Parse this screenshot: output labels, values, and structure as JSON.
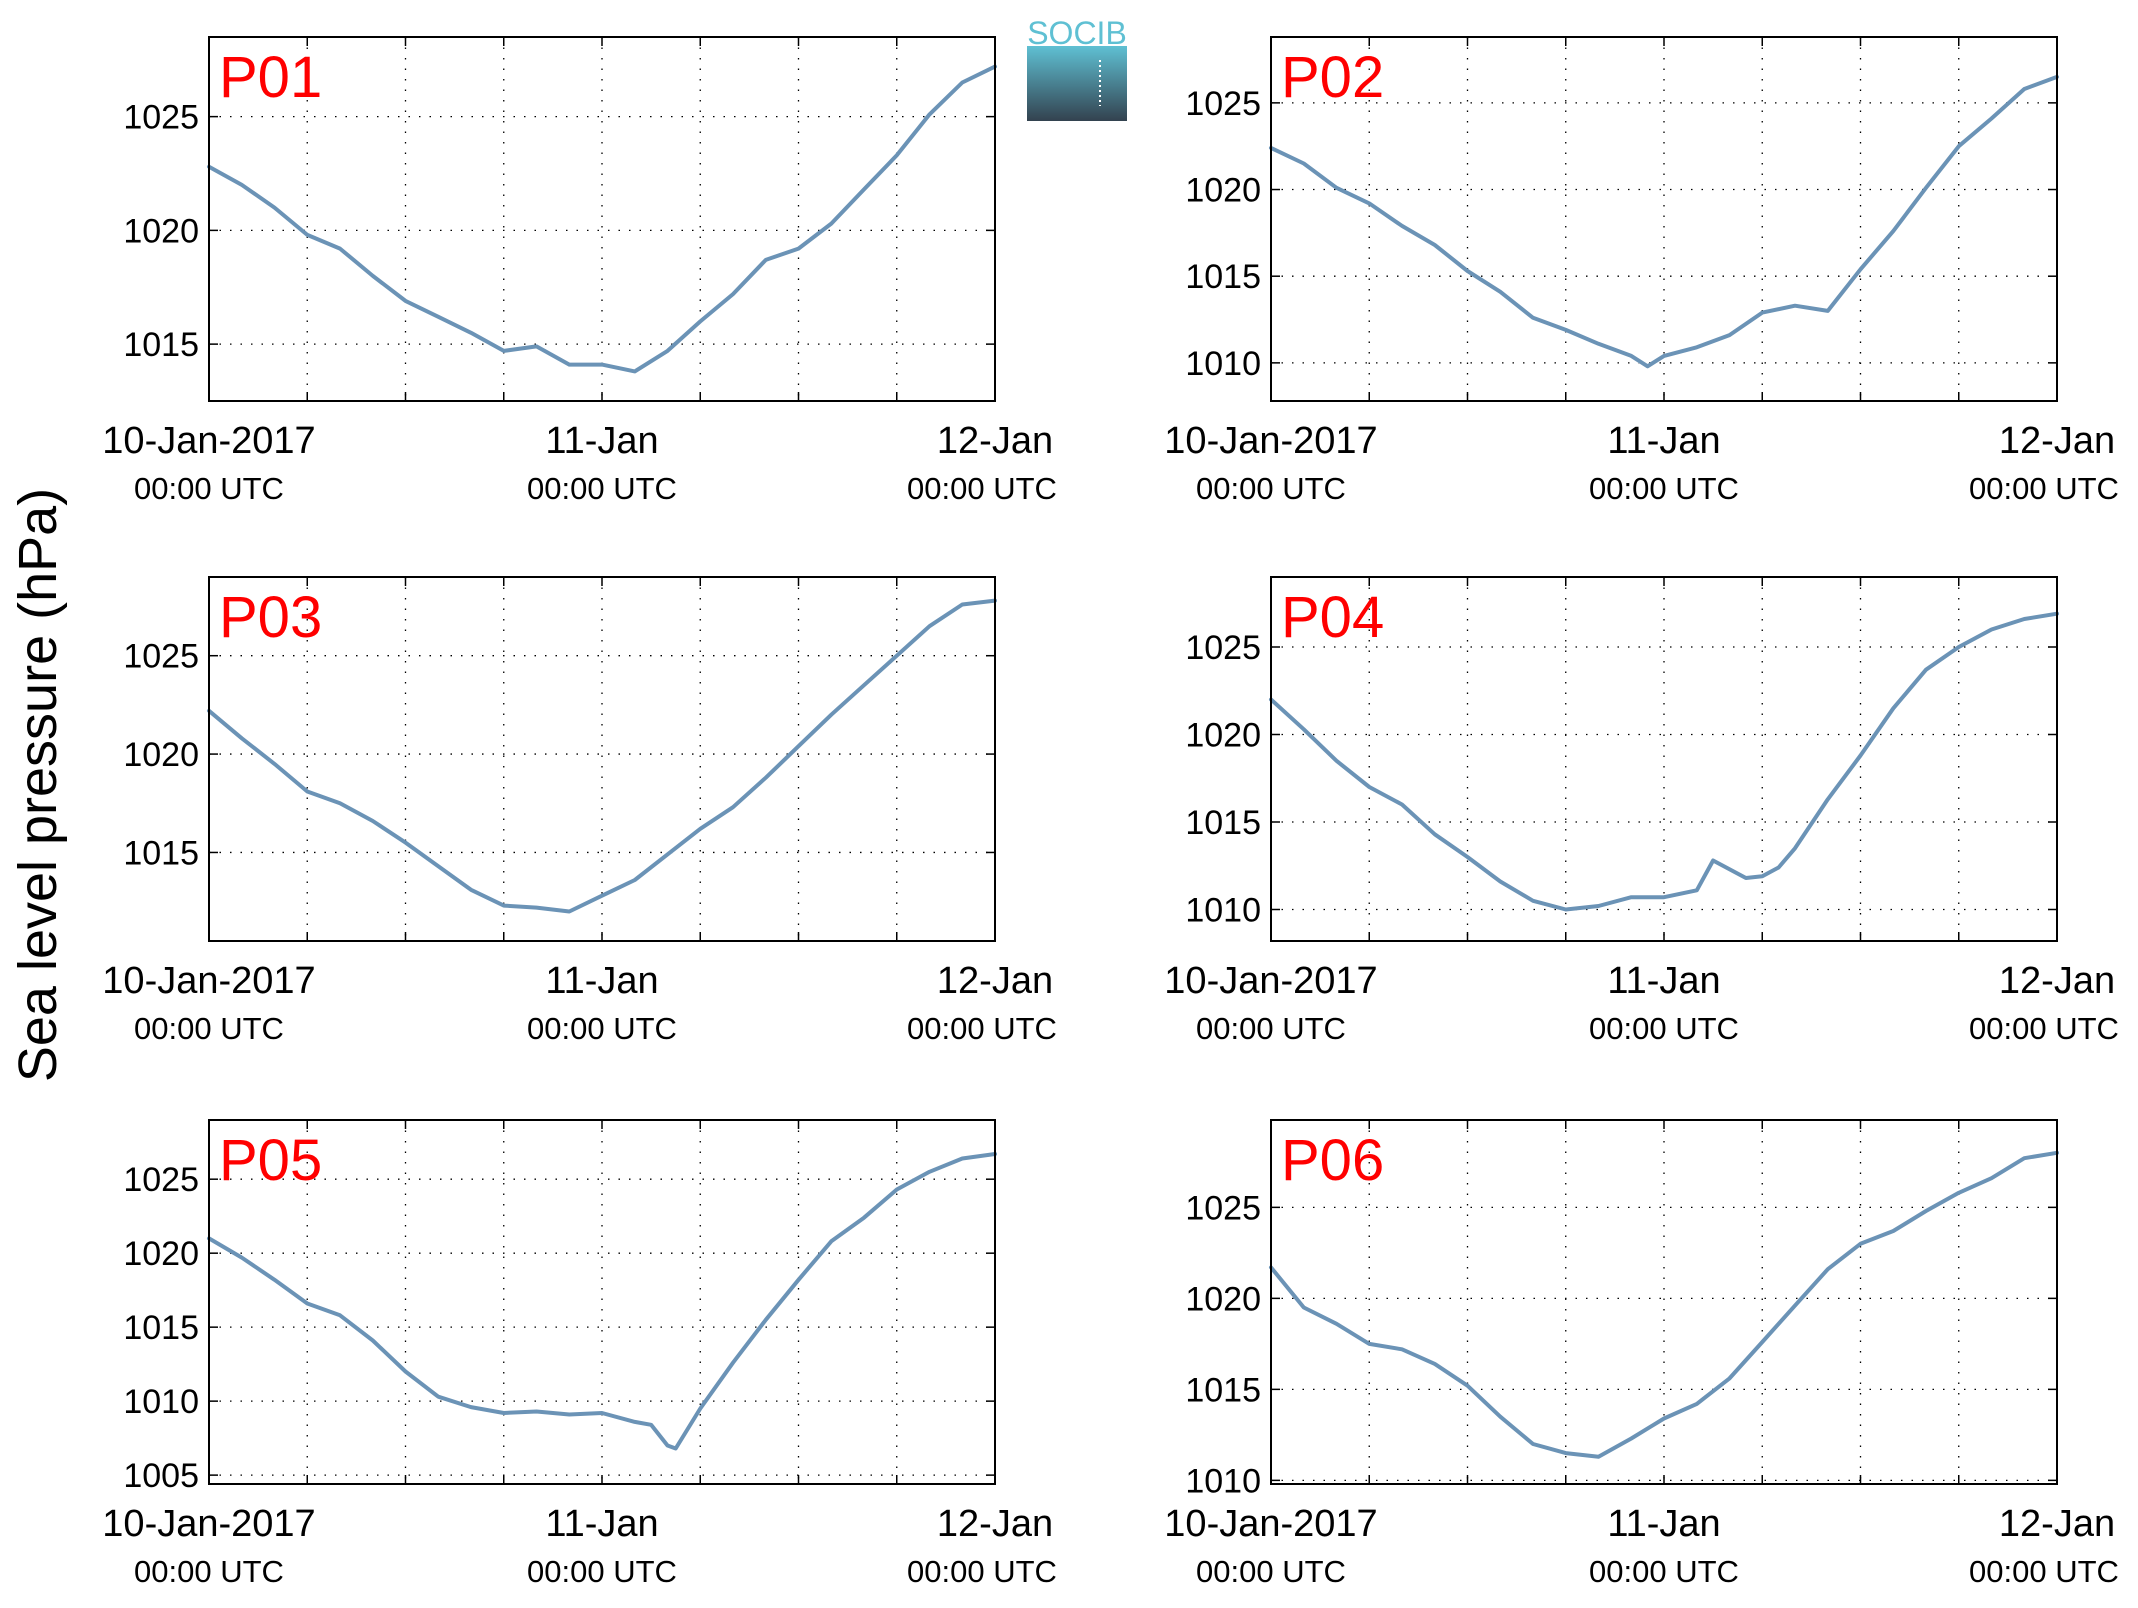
{
  "figure": {
    "ylabel": "Sea level pressure (hPa)",
    "logo_text": "SOCIB",
    "colors": {
      "line": "#6b93b6",
      "panel_label": "#ff0000",
      "logo_top": "#5fc0d3",
      "logo_bottom": "#33424f",
      "axis": "#000000",
      "grid": "#000000"
    }
  },
  "chart_data": [
    {
      "type": "line",
      "panel_label": "P01",
      "x_ticks": [
        {
          "date": "10-Jan-2017",
          "main": "10-Jan-2017",
          "sub": "00:00 UTC"
        },
        {
          "date": "11-Jan-2017",
          "main": "11-Jan",
          "sub": "00:00 UTC"
        },
        {
          "date": "12-Jan-2017",
          "main": "12-Jan",
          "sub": "00:00 UTC"
        }
      ],
      "x_range_hours": [
        0,
        48
      ],
      "minor_tick_hours": [
        6,
        12,
        18,
        24,
        30,
        36,
        42
      ],
      "ylim": [
        1012.5,
        1028.5
      ],
      "yticks": [
        1015,
        1020,
        1025
      ],
      "grid": true,
      "hours": [
        0,
        2,
        4,
        6,
        8,
        10,
        12,
        14,
        16,
        18,
        20,
        22,
        24,
        26,
        28,
        30,
        32,
        34,
        36,
        38,
        40,
        42,
        44,
        46,
        48
      ],
      "values": [
        1022.8,
        1022.0,
        1021.0,
        1019.8,
        1019.2,
        1018.0,
        1016.9,
        1016.2,
        1015.5,
        1014.7,
        1014.9,
        1014.1,
        1014.1,
        1013.8,
        1014.7,
        1016.0,
        1017.2,
        1018.7,
        1019.2,
        1020.3,
        1021.8,
        1023.3,
        1025.1,
        1026.5,
        1027.2
      ]
    },
    {
      "type": "line",
      "panel_label": "P02",
      "x_ticks": [
        {
          "date": "10-Jan-2017",
          "main": "10-Jan-2017",
          "sub": "00:00 UTC"
        },
        {
          "date": "11-Jan-2017",
          "main": "11-Jan",
          "sub": "00:00 UTC"
        },
        {
          "date": "12-Jan-2017",
          "main": "12-Jan",
          "sub": "00:00 UTC"
        }
      ],
      "x_range_hours": [
        0,
        48
      ],
      "minor_tick_hours": [
        6,
        12,
        18,
        24,
        30,
        36,
        42
      ],
      "ylim": [
        1007.8,
        1028.8
      ],
      "yticks": [
        1010,
        1015,
        1020,
        1025
      ],
      "grid": true,
      "hours": [
        0,
        2,
        4,
        6,
        8,
        10,
        12,
        14,
        16,
        18,
        20,
        22,
        23,
        24,
        26,
        28,
        30,
        32,
        34,
        36,
        38,
        40,
        42,
        44,
        46,
        48
      ],
      "values": [
        1022.4,
        1021.5,
        1020.1,
        1019.2,
        1017.9,
        1016.8,
        1015.3,
        1014.1,
        1012.6,
        1011.9,
        1011.1,
        1010.4,
        1009.8,
        1010.4,
        1010.9,
        1011.6,
        1012.9,
        1013.3,
        1013.0,
        1015.4,
        1017.6,
        1020.1,
        1022.5,
        1024.1,
        1025.8,
        1026.5
      ]
    },
    {
      "type": "line",
      "panel_label": "P03",
      "x_ticks": [
        {
          "date": "10-Jan-2017",
          "main": "10-Jan-2017",
          "sub": "00:00 UTC"
        },
        {
          "date": "11-Jan-2017",
          "main": "11-Jan",
          "sub": "00:00 UTC"
        },
        {
          "date": "12-Jan-2017",
          "main": "12-Jan",
          "sub": "00:00 UTC"
        }
      ],
      "x_range_hours": [
        0,
        48
      ],
      "minor_tick_hours": [
        6,
        12,
        18,
        24,
        30,
        36,
        42
      ],
      "ylim": [
        1010.5,
        1029.0
      ],
      "yticks": [
        1015,
        1020,
        1025
      ],
      "grid": true,
      "hours": [
        0,
        2,
        4,
        6,
        8,
        10,
        12,
        14,
        16,
        18,
        20,
        22,
        24,
        26,
        28,
        30,
        32,
        34,
        36,
        38,
        40,
        42,
        44,
        46,
        48
      ],
      "values": [
        1022.2,
        1020.8,
        1019.5,
        1018.1,
        1017.5,
        1016.6,
        1015.5,
        1014.3,
        1013.1,
        1012.3,
        1012.2,
        1012.0,
        1012.8,
        1013.6,
        1014.9,
        1016.2,
        1017.3,
        1018.8,
        1020.4,
        1022.0,
        1023.5,
        1025.0,
        1026.5,
        1027.6,
        1027.8
      ]
    },
    {
      "type": "line",
      "panel_label": "P04",
      "x_ticks": [
        {
          "date": "10-Jan-2017",
          "main": "10-Jan-2017",
          "sub": "00:00 UTC"
        },
        {
          "date": "11-Jan-2017",
          "main": "11-Jan",
          "sub": "00:00 UTC"
        },
        {
          "date": "12-Jan-2017",
          "main": "12-Jan",
          "sub": "00:00 UTC"
        }
      ],
      "x_range_hours": [
        0,
        48
      ],
      "minor_tick_hours": [
        6,
        12,
        18,
        24,
        30,
        36,
        42
      ],
      "ylim": [
        1008.2,
        1029.0
      ],
      "yticks": [
        1010,
        1015,
        1020,
        1025
      ],
      "grid": true,
      "hours": [
        0,
        2,
        4,
        6,
        8,
        10,
        12,
        14,
        16,
        18,
        20,
        22,
        24,
        26,
        27,
        28,
        29,
        30,
        31,
        32,
        34,
        36,
        38,
        40,
        42,
        44,
        46,
        48
      ],
      "values": [
        1022.0,
        1020.3,
        1018.5,
        1017.0,
        1016.0,
        1014.3,
        1013.0,
        1011.6,
        1010.5,
        1010.0,
        1010.2,
        1010.7,
        1010.7,
        1011.1,
        1012.8,
        1012.3,
        1011.8,
        1011.9,
        1012.4,
        1013.5,
        1016.3,
        1018.8,
        1021.5,
        1023.7,
        1025.0,
        1026.0,
        1026.6,
        1026.9
      ]
    },
    {
      "type": "line",
      "panel_label": "P05",
      "x_ticks": [
        {
          "date": "10-Jan-2017",
          "main": "10-Jan-2017",
          "sub": "00:00 UTC"
        },
        {
          "date": "11-Jan-2017",
          "main": "11-Jan",
          "sub": "00:00 UTC"
        },
        {
          "date": "12-Jan-2017",
          "main": "12-Jan",
          "sub": "00:00 UTC"
        }
      ],
      "x_range_hours": [
        0,
        48
      ],
      "minor_tick_hours": [
        6,
        12,
        18,
        24,
        30,
        36,
        42
      ],
      "ylim": [
        1004.4,
        1029.0
      ],
      "yticks": [
        1005,
        1010,
        1015,
        1020,
        1025
      ],
      "grid": true,
      "hours": [
        0,
        2,
        4,
        6,
        8,
        10,
        12,
        14,
        16,
        18,
        20,
        22,
        24,
        26,
        27,
        28,
        28.5,
        30,
        32,
        34,
        36,
        38,
        40,
        42,
        44,
        46,
        48
      ],
      "values": [
        1021.0,
        1019.7,
        1018.2,
        1016.6,
        1015.8,
        1014.1,
        1012.0,
        1010.3,
        1009.6,
        1009.2,
        1009.3,
        1009.1,
        1009.2,
        1008.6,
        1008.4,
        1007.0,
        1006.8,
        1009.5,
        1012.6,
        1015.5,
        1018.2,
        1020.8,
        1022.4,
        1024.3,
        1025.5,
        1026.4,
        1026.7
      ]
    },
    {
      "type": "line",
      "panel_label": "P06",
      "x_ticks": [
        {
          "date": "10-Jan-2017",
          "main": "10-Jan-2017",
          "sub": "00:00 UTC"
        },
        {
          "date": "11-Jan-2017",
          "main": "11-Jan",
          "sub": "00:00 UTC"
        },
        {
          "date": "12-Jan-2017",
          "main": "12-Jan",
          "sub": "00:00 UTC"
        }
      ],
      "x_range_hours": [
        0,
        48
      ],
      "minor_tick_hours": [
        6,
        12,
        18,
        24,
        30,
        36,
        42
      ],
      "ylim": [
        1009.8,
        1029.8
      ],
      "yticks": [
        1010,
        1015,
        1020,
        1025
      ],
      "grid": true,
      "hours": [
        0,
        2,
        4,
        6,
        8,
        10,
        12,
        14,
        16,
        18,
        20,
        22,
        24,
        26,
        28,
        30,
        32,
        34,
        36,
        38,
        40,
        42,
        44,
        46,
        48
      ],
      "values": [
        1021.7,
        1019.5,
        1018.6,
        1017.5,
        1017.2,
        1016.4,
        1015.2,
        1013.5,
        1012.0,
        1011.5,
        1011.3,
        1012.3,
        1013.4,
        1014.2,
        1015.6,
        1017.6,
        1019.6,
        1021.6,
        1023.0,
        1023.7,
        1024.8,
        1025.8,
        1026.6,
        1027.7,
        1028.0
      ]
    }
  ]
}
